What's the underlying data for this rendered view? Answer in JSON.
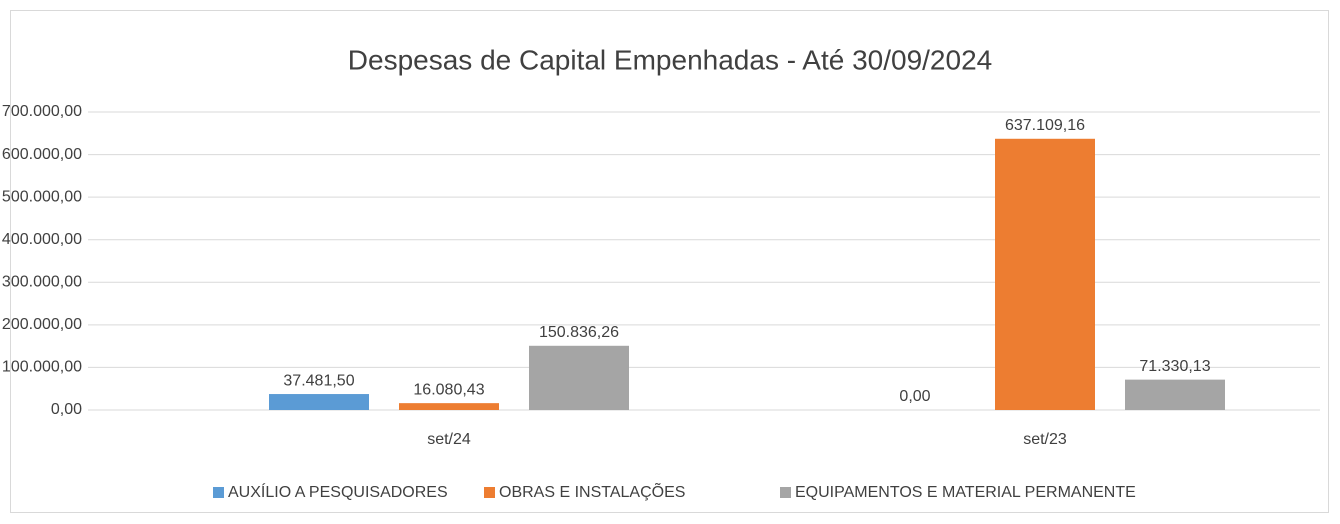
{
  "chart_data": {
    "type": "bar",
    "title": "Despesas de Capital Empenhadas - Até 30/09/2024",
    "categories": [
      "set/24",
      "set/23"
    ],
    "series": [
      {
        "name": "AUXÍLIO A PESQUISADORES",
        "color": "#5b9bd5",
        "values": [
          37481.5,
          0
        ],
        "value_labels": [
          "37.481,50",
          "0,00"
        ]
      },
      {
        "name": "OBRAS E INSTALAÇÕES",
        "color": "#ed7d31",
        "values": [
          16080.43,
          637109.16
        ],
        "value_labels": [
          "16.080,43",
          "637.109,16"
        ]
      },
      {
        "name": "EQUIPAMENTOS E MATERIAL PERMANENTE",
        "color": "#a5a5a5",
        "values": [
          150836.26,
          71330.13
        ],
        "value_labels": [
          "150.836,26",
          "71.330,13"
        ]
      }
    ],
    "ylim": [
      0,
      700000
    ],
    "yticks": [
      {
        "value": 0,
        "label": "0,00"
      },
      {
        "value": 100000,
        "label": "100.000,00"
      },
      {
        "value": 200000,
        "label": "200.000,00"
      },
      {
        "value": 300000,
        "label": "300.000,00"
      },
      {
        "value": 400000,
        "label": "400.000,00"
      },
      {
        "value": 500000,
        "label": "500.000,00"
      },
      {
        "value": 600000,
        "label": "600.000,00"
      },
      {
        "value": 700000,
        "label": "700.000,00"
      }
    ],
    "grid": true,
    "legend": "bottom"
  }
}
